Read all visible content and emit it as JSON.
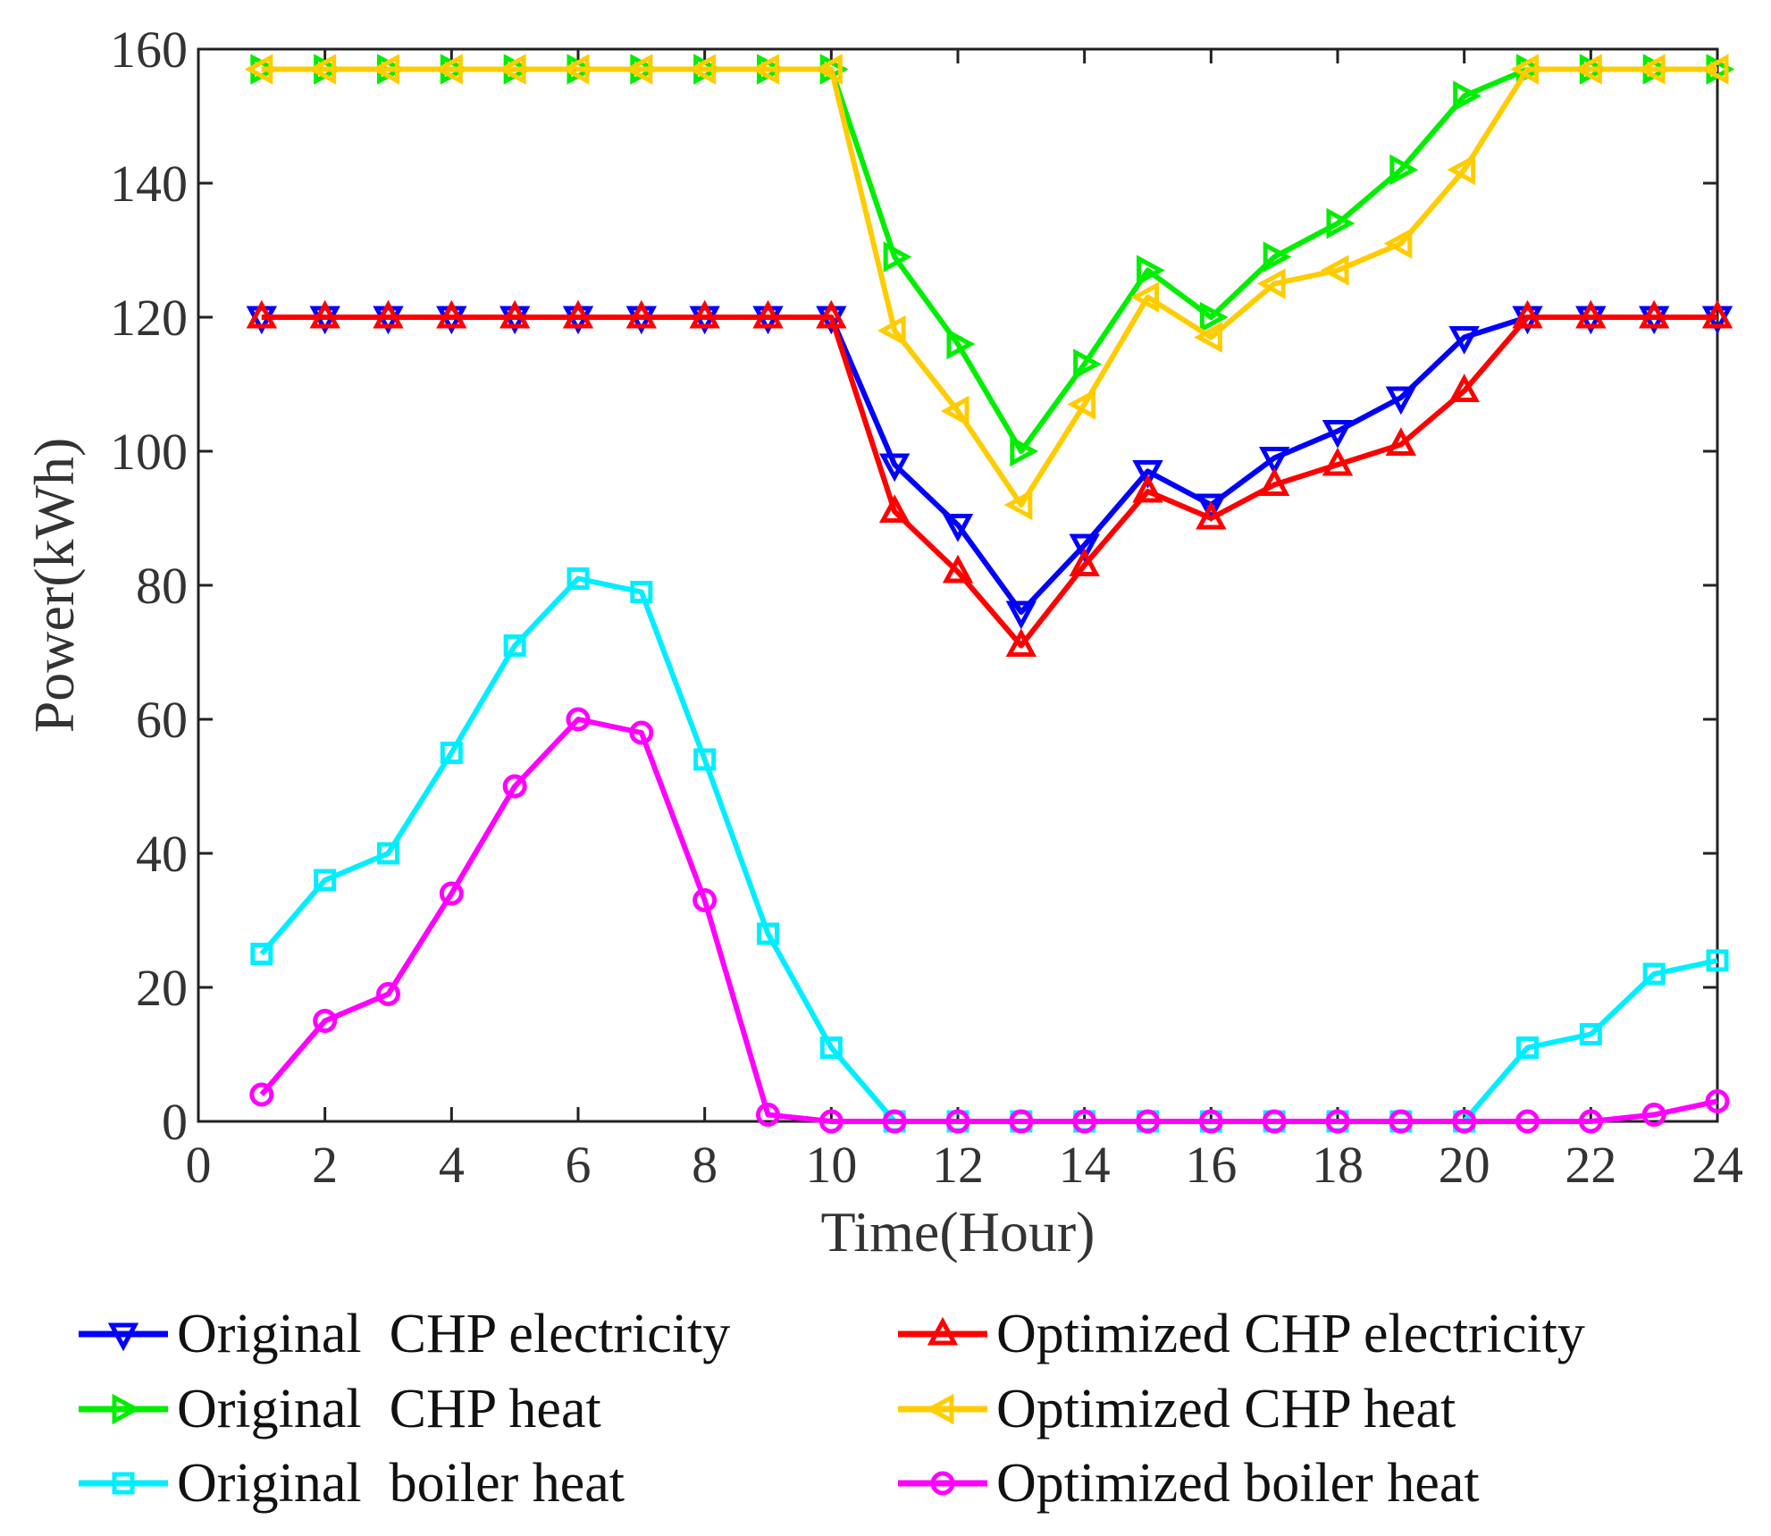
{
  "chart_data": {
    "type": "line",
    "title": "",
    "xlabel": "Time(Hour)",
    "ylabel": "Power(kWh)",
    "xlim": [
      0,
      24
    ],
    "ylim": [
      0,
      160
    ],
    "xticks": [
      0,
      2,
      4,
      6,
      8,
      10,
      12,
      14,
      16,
      18,
      20,
      22,
      24
    ],
    "yticks": [
      0,
      20,
      40,
      60,
      80,
      100,
      120,
      140,
      160
    ],
    "grid": false,
    "legend_position": "bottom",
    "x": [
      1,
      2,
      3,
      4,
      5,
      6,
      7,
      8,
      9,
      10,
      11,
      12,
      13,
      14,
      15,
      16,
      17,
      18,
      19,
      20,
      21,
      22,
      23,
      24
    ],
    "series": [
      {
        "name": "Original  CHP electricity",
        "color": "#0000ff",
        "marker": "triangle-down",
        "values": [
          120,
          120,
          120,
          120,
          120,
          120,
          120,
          120,
          120,
          120,
          98,
          89,
          76,
          86,
          97,
          92,
          99,
          103,
          108,
          117,
          120,
          120,
          120,
          120
        ]
      },
      {
        "name": "Optimized CHP electricity",
        "color": "#ff0000",
        "marker": "triangle-up",
        "values": [
          120,
          120,
          120,
          120,
          120,
          120,
          120,
          120,
          120,
          120,
          91,
          82,
          71,
          83,
          94,
          90,
          95,
          98,
          101,
          109,
          120,
          120,
          120,
          120
        ]
      },
      {
        "name": "Original  CHP heat",
        "color": "#00ee00",
        "marker": "triangle-right",
        "values": [
          157,
          157,
          157,
          157,
          157,
          157,
          157,
          157,
          157,
          157,
          129,
          116,
          100,
          113,
          127,
          120,
          129,
          134,
          142,
          153,
          157,
          157,
          157,
          157
        ]
      },
      {
        "name": "Optimized CHP heat",
        "color": "#ffcc00",
        "marker": "triangle-left",
        "values": [
          157,
          157,
          157,
          157,
          157,
          157,
          157,
          157,
          157,
          157,
          118,
          106,
          92,
          107,
          123,
          117,
          125,
          127,
          131,
          142,
          157,
          157,
          157,
          157
        ]
      },
      {
        "name": "Original  boiler heat",
        "color": "#00eeff",
        "marker": "square",
        "values": [
          25,
          36,
          40,
          55,
          71,
          81,
          79,
          54,
          28,
          11,
          0,
          0,
          0,
          0,
          0,
          0,
          0,
          0,
          0,
          0,
          11,
          13,
          22,
          24
        ]
      },
      {
        "name": "Optimized boiler heat",
        "color": "#ff00ff",
        "marker": "circle",
        "values": [
          4,
          15,
          19,
          34,
          50,
          60,
          58,
          33,
          1,
          0,
          0,
          0,
          0,
          0,
          0,
          0,
          0,
          0,
          0,
          0,
          0,
          0,
          1,
          3
        ]
      }
    ]
  }
}
